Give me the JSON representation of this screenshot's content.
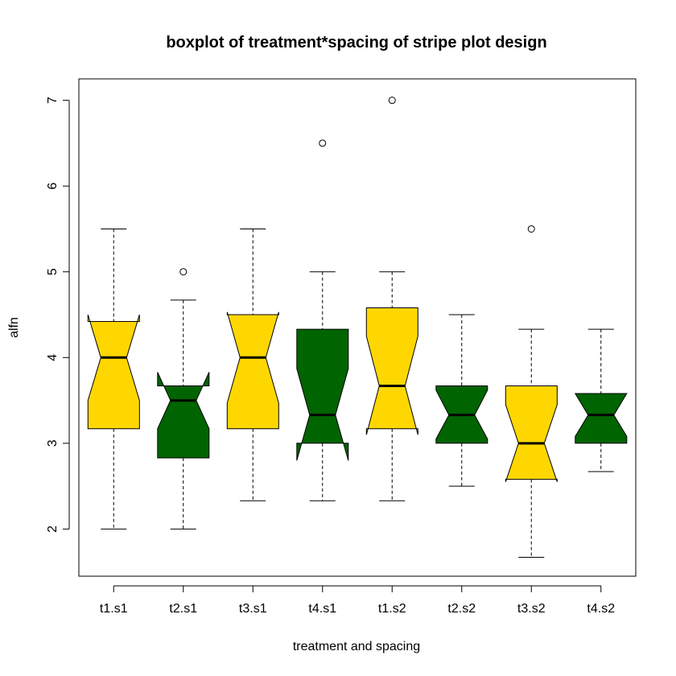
{
  "chart_data": {
    "type": "boxplot",
    "title": "boxplot of treatment*spacing of stripe plot design",
    "xlabel": "treatment and spacing",
    "ylabel": "alfn",
    "ylim": [
      1.45,
      7.25
    ],
    "yticks": [
      2,
      3,
      4,
      5,
      6,
      7
    ],
    "notched": true,
    "grid": false,
    "colors": {
      "gold": "#FFD700",
      "green": "#006400"
    },
    "boxes": [
      {
        "label": "t1.s1",
        "color": "#FFD700",
        "whisker_low": 2.0,
        "q1": 3.17,
        "median": 4.0,
        "q3": 4.42,
        "whisker_high": 5.5,
        "notch_low": 3.5,
        "notch_high": 4.5,
        "outliers": []
      },
      {
        "label": "t2.s1",
        "color": "#006400",
        "whisker_low": 2.0,
        "q1": 2.83,
        "median": 3.5,
        "q3": 3.67,
        "whisker_high": 4.67,
        "notch_low": 3.17,
        "notch_high": 3.83,
        "outliers": [
          5.0
        ]
      },
      {
        "label": "t3.s1",
        "color": "#FFD700",
        "whisker_low": 2.33,
        "q1": 3.17,
        "median": 4.0,
        "q3": 4.5,
        "whisker_high": 5.5,
        "notch_low": 3.47,
        "notch_high": 4.53,
        "outliers": []
      },
      {
        "label": "t4.s1",
        "color": "#006400",
        "whisker_low": 2.33,
        "q1": 3.0,
        "median": 3.33,
        "q3": 4.33,
        "whisker_high": 5.0,
        "notch_low": 2.8,
        "notch_high": 3.87,
        "outliers": [
          6.5
        ]
      },
      {
        "label": "t1.s2",
        "color": "#FFD700",
        "whisker_low": 2.33,
        "q1": 3.17,
        "median": 3.67,
        "q3": 4.58,
        "whisker_high": 5.0,
        "notch_low": 3.1,
        "notch_high": 4.25,
        "outliers": [
          7.0
        ]
      },
      {
        "label": "t2.s2",
        "color": "#006400",
        "whisker_low": 2.5,
        "q1": 3.0,
        "median": 3.33,
        "q3": 3.67,
        "whisker_high": 4.5,
        "notch_low": 3.05,
        "notch_high": 3.62,
        "outliers": []
      },
      {
        "label": "t3.s2",
        "color": "#FFD700",
        "whisker_low": 1.67,
        "q1": 2.58,
        "median": 3.0,
        "q3": 3.67,
        "whisker_high": 4.33,
        "notch_low": 2.55,
        "notch_high": 3.45,
        "outliers": [
          5.5
        ]
      },
      {
        "label": "t4.s2",
        "color": "#006400",
        "whisker_low": 2.67,
        "q1": 3.0,
        "median": 3.33,
        "q3": 3.58,
        "whisker_high": 4.33,
        "notch_low": 3.08,
        "notch_high": 3.58,
        "outliers": []
      }
    ]
  }
}
